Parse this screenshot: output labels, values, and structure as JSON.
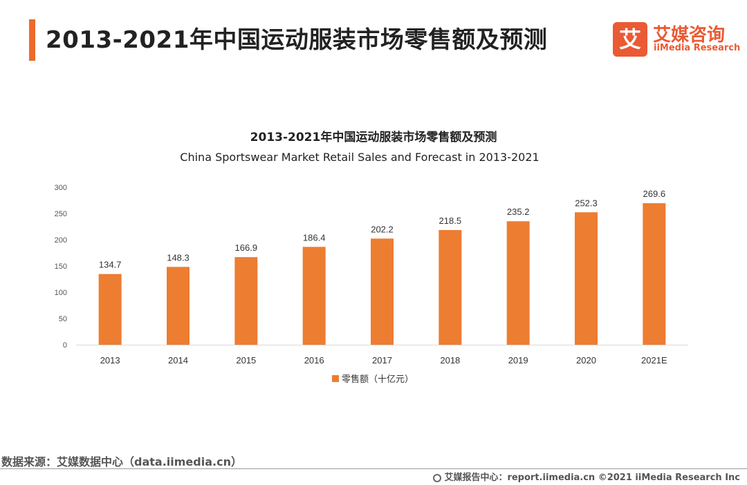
{
  "header": {
    "title": "2013-2021年中国运动服装市场零售额及预测"
  },
  "logo": {
    "mark": "艾",
    "name_cn": "艾媒咨询",
    "name_en": "iiMedia Research"
  },
  "colors": {
    "accent": "#ee6a2c",
    "bar": "#ed7d31"
  },
  "chart_data": {
    "type": "bar",
    "title": "2013-2021年中国运动服装市场零售额及预测",
    "subtitle": "China Sportswear Market Retail Sales and Forecast  in 2013-2021",
    "categories": [
      "2013",
      "2014",
      "2015",
      "2016",
      "2017",
      "2018",
      "2019",
      "2020",
      "2021E"
    ],
    "series": [
      {
        "name": "零售额（十亿元）",
        "values": [
          134.7,
          148.3,
          166.9,
          186.4,
          202.2,
          218.5,
          235.2,
          252.3,
          269.6
        ]
      }
    ],
    "ylim": [
      0,
      300
    ],
    "yticks": [
      0,
      50,
      100,
      150,
      200,
      250,
      300
    ],
    "grid": false,
    "legend": "bottom",
    "data_labels": true
  },
  "footer": {
    "source": "数据来源：艾媒数据中心（data.iimedia.cn）",
    "credit": "艾媒报告中心：report.iimedia.cn  ©2021  iiMedia Research  Inc"
  }
}
